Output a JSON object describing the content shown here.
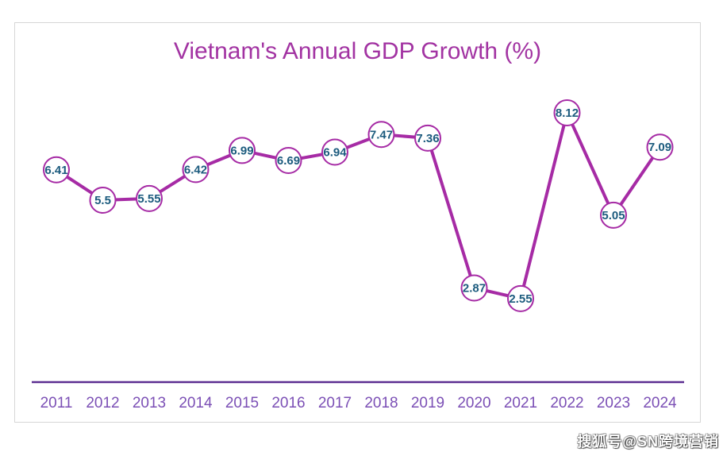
{
  "chart_data": {
    "type": "line",
    "title": "Vietnam's Annual GDP Growth (%)",
    "categories": [
      "2011",
      "2012",
      "2013",
      "2014",
      "2015",
      "2016",
      "2017",
      "2018",
      "2019",
      "2020",
      "2021",
      "2022",
      "2023",
      "2024"
    ],
    "values": [
      6.41,
      5.5,
      5.55,
      6.42,
      6.99,
      6.69,
      6.94,
      7.47,
      7.36,
      2.87,
      2.55,
      8.12,
      5.05,
      7.09
    ],
    "xlabel": "",
    "ylabel": "",
    "ylim": [
      0,
      10
    ],
    "grid": false,
    "legend": "none",
    "data_labels_visible": true,
    "colors": {
      "title": "#A233A2",
      "line": "#A62BA5",
      "marker_fill": "#FFFFFF",
      "marker_stroke": "#A62BA5",
      "data_label": "#1C5B7E",
      "axis_line": "#5B2E91",
      "tick_label": "#7B4FB5",
      "frame_border": "#D6D6D6"
    }
  },
  "watermark": {
    "text": "搜狐号@SN跨境营销"
  }
}
